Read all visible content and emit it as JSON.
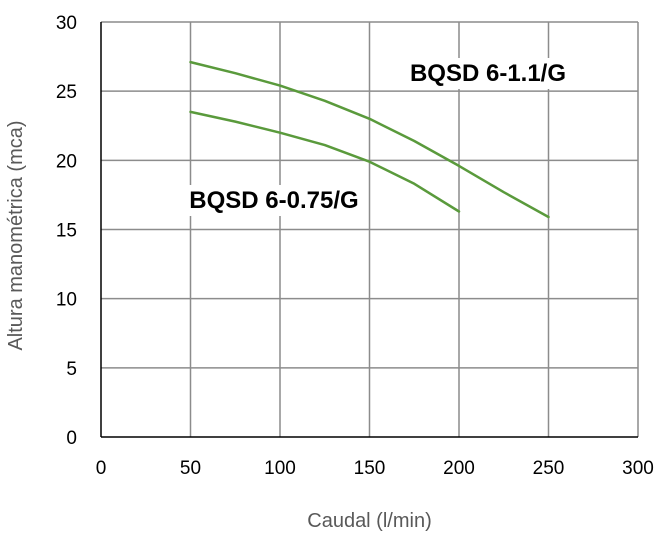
{
  "chart_data": {
    "type": "line",
    "xlabel": "Caudal (l/min)",
    "ylabel": "Altura manométrica (mca)",
    "xlim": [
      0,
      300
    ],
    "ylim": [
      0,
      30
    ],
    "x_ticks": [
      "0",
      "50",
      "100",
      "150",
      "200",
      "250",
      "300"
    ],
    "y_ticks": [
      "0",
      "5",
      "10",
      "15",
      "20",
      "25",
      "30"
    ],
    "grid": true,
    "line_color": "#5a9a3c",
    "series": [
      {
        "name": "BQSD 6-1.1/G",
        "x": [
          50,
          75,
          100,
          125,
          150,
          175,
          200,
          225,
          250
        ],
        "y": [
          27.1,
          26.3,
          25.4,
          24.3,
          23.0,
          21.4,
          19.6,
          17.7,
          15.9
        ]
      },
      {
        "name": "BQSD 6-0.75/G",
        "x": [
          50,
          75,
          100,
          125,
          150,
          175,
          200
        ],
        "y": [
          23.5,
          22.8,
          22.0,
          21.1,
          19.9,
          18.3,
          16.3
        ]
      }
    ]
  }
}
